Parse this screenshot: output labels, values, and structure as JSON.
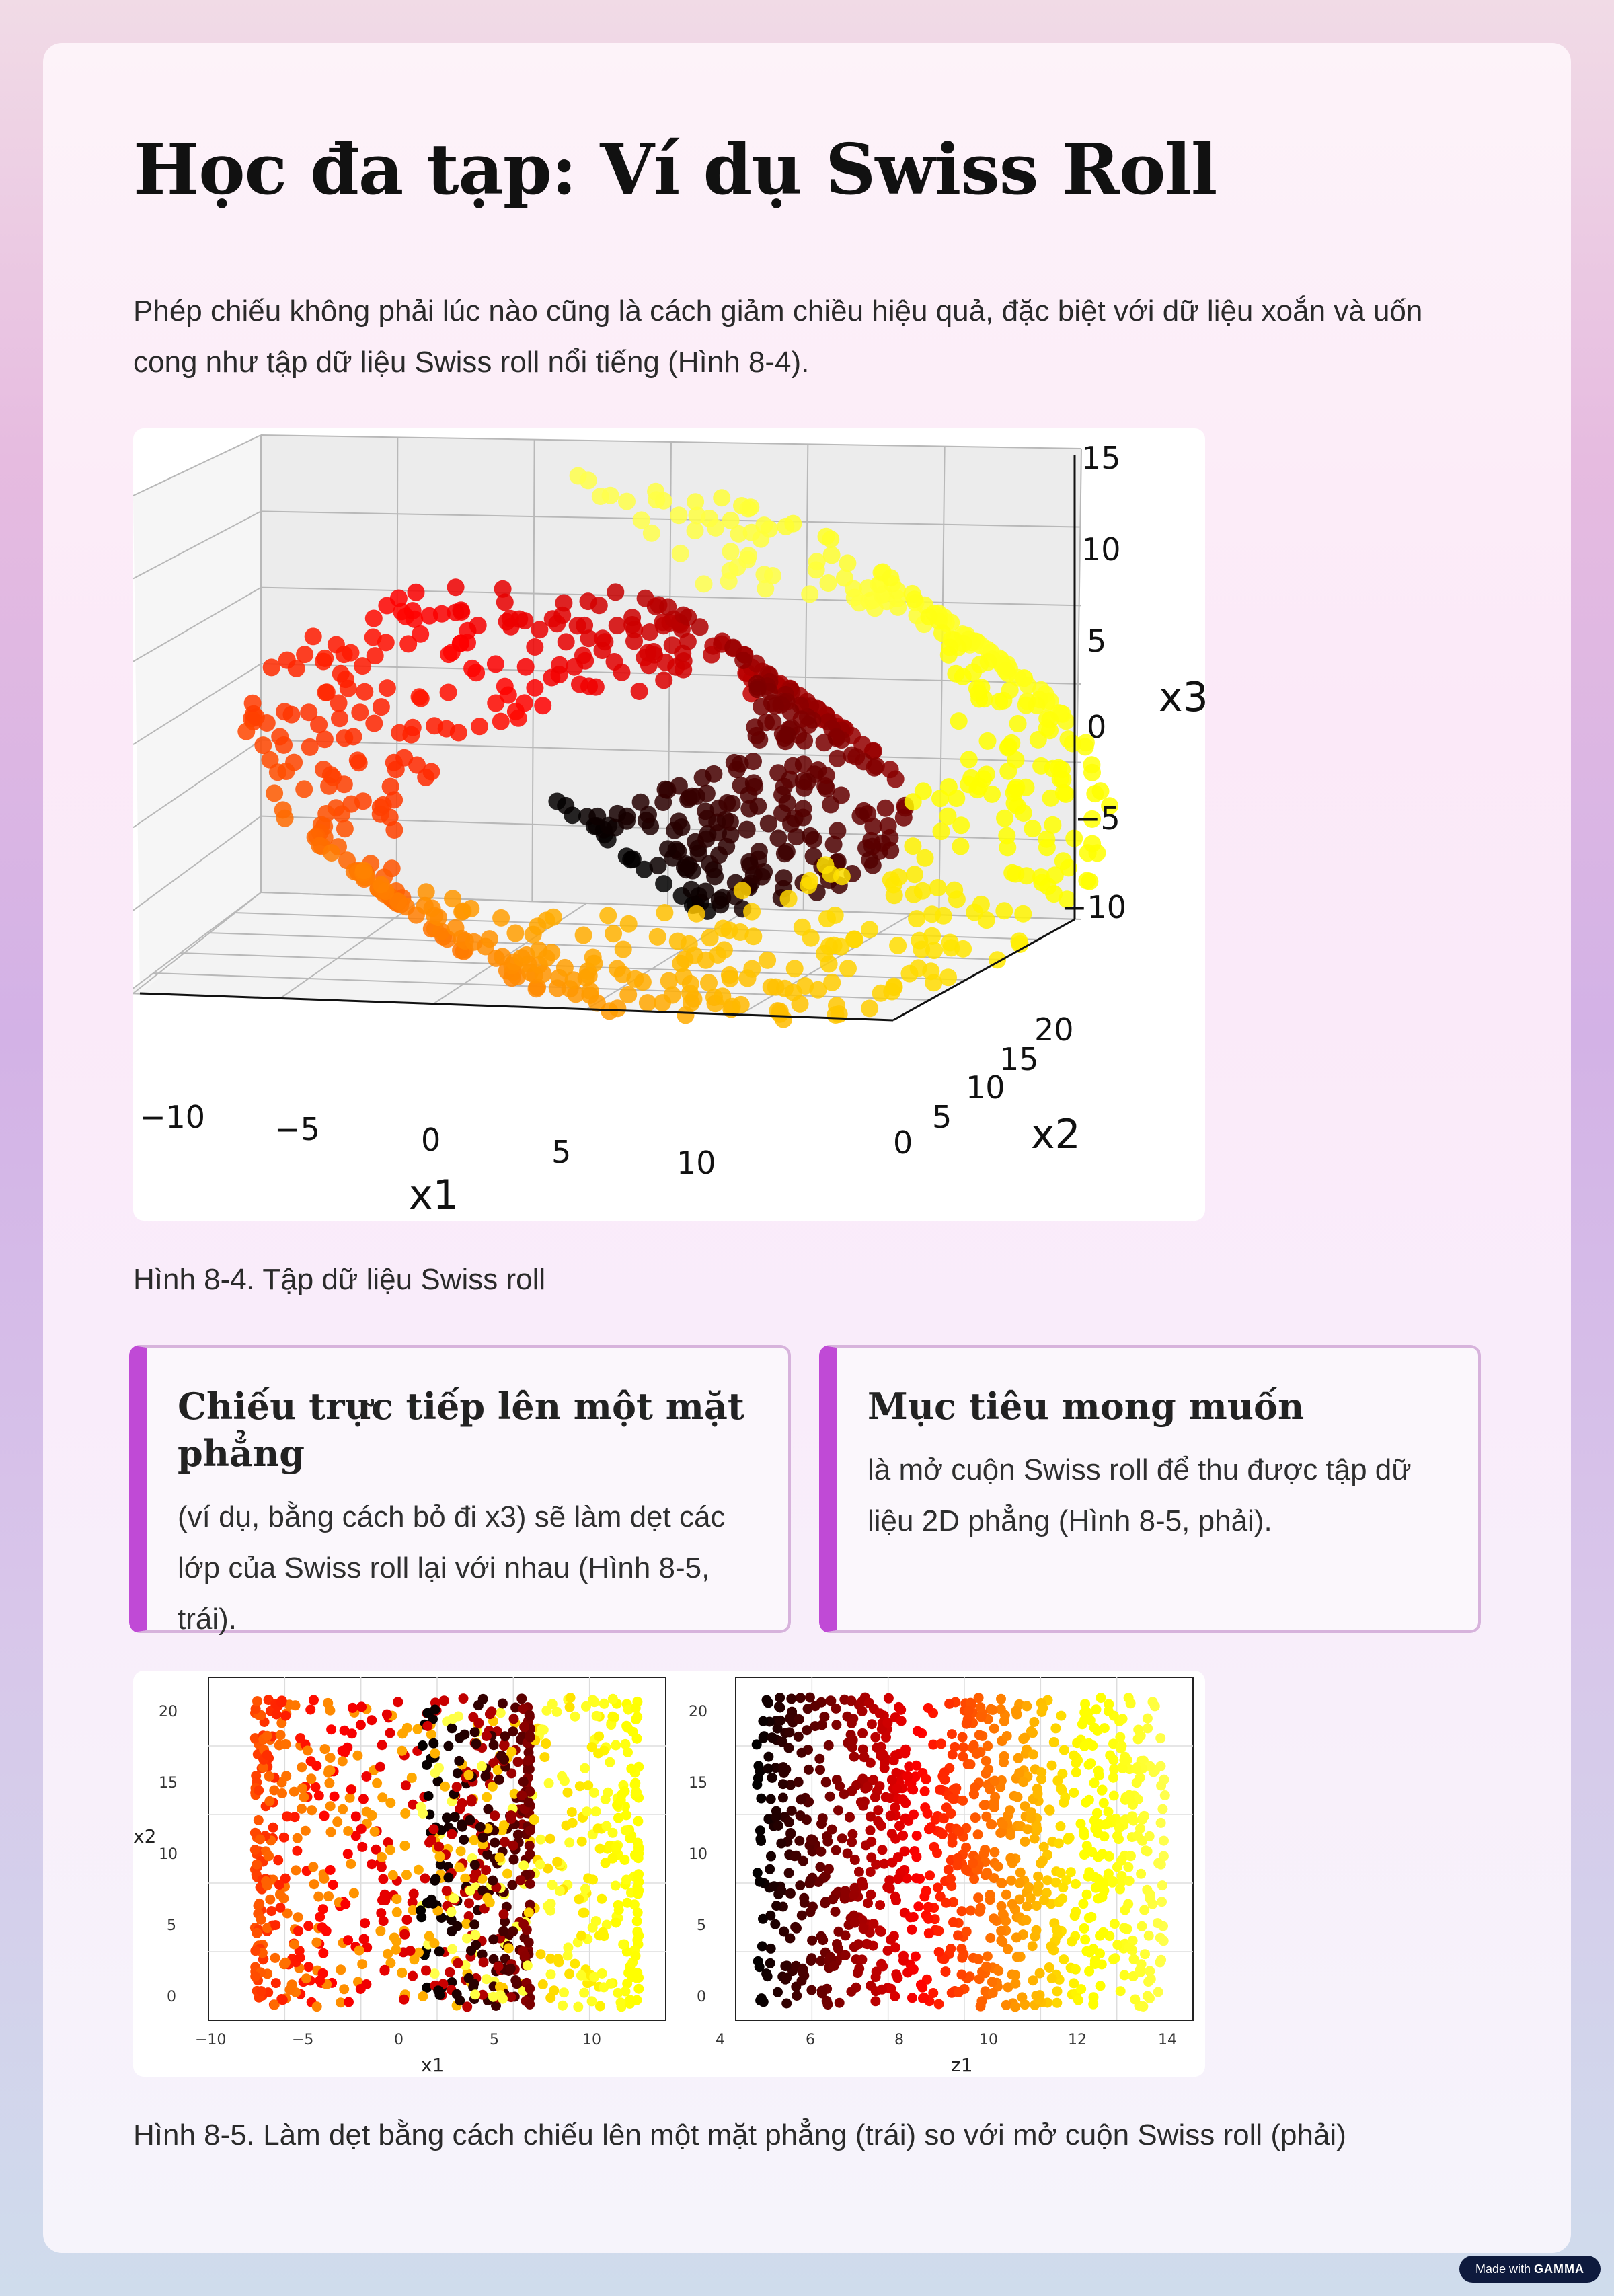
{
  "title": "Học đa tạp: Ví dụ Swiss Roll",
  "intro": "Phép chiếu không phải lúc nào cũng là cách giảm chiều hiệu quả, đặc biệt với dữ liệu xoắn và uốn cong như tập dữ liệu Swiss roll nổi tiếng (Hình 8-4).",
  "figure1": {
    "caption": "Hình 8-4. Tập dữ liệu Swiss roll",
    "z_ticks": [
      "15",
      "10",
      "5",
      "0",
      "−5",
      "−10"
    ],
    "x1_ticks": [
      "−10",
      "−5",
      "0",
      "5",
      "10"
    ],
    "x2_ticks": [
      "0",
      "5",
      "10",
      "15",
      "20"
    ],
    "x1_label": "x1",
    "x2_label": "x2",
    "x3_label": "x3"
  },
  "box_left": {
    "heading": "Chiếu trực tiếp lên một mặt phẳng",
    "text": "(ví dụ, bằng cách bỏ đi x3) sẽ làm dẹt các lớp của Swiss roll lại với nhau (Hình 8-5, trái)."
  },
  "box_right": {
    "heading": "Mục tiêu mong muốn",
    "text": "là mở cuộn Swiss roll để thu được tập dữ liệu 2D phẳng (Hình 8-5, phải)."
  },
  "figure2": {
    "caption": "Hình 8-5. Làm dẹt bằng cách chiếu lên một mặt phẳng (trái) so với mở cuộn Swiss roll (phải)",
    "left": {
      "x_ticks": [
        "−10",
        "−5",
        "0",
        "5",
        "10"
      ],
      "y_ticks": [
        "0",
        "5",
        "10",
        "15",
        "20"
      ],
      "xlabel": "x1",
      "ylabel": "x2"
    },
    "right": {
      "x_ticks": [
        "4",
        "6",
        "8",
        "10",
        "12",
        "14"
      ],
      "y_ticks": [
        "0",
        "5",
        "10",
        "15",
        "20"
      ],
      "xlabel": "z1"
    }
  },
  "colors": {
    "accent": "#c04ad6",
    "box_border": "#d7b3dc",
    "colormap": "hot"
  },
  "badge": {
    "prefix": "Made with",
    "brand": "GAMMA"
  }
}
